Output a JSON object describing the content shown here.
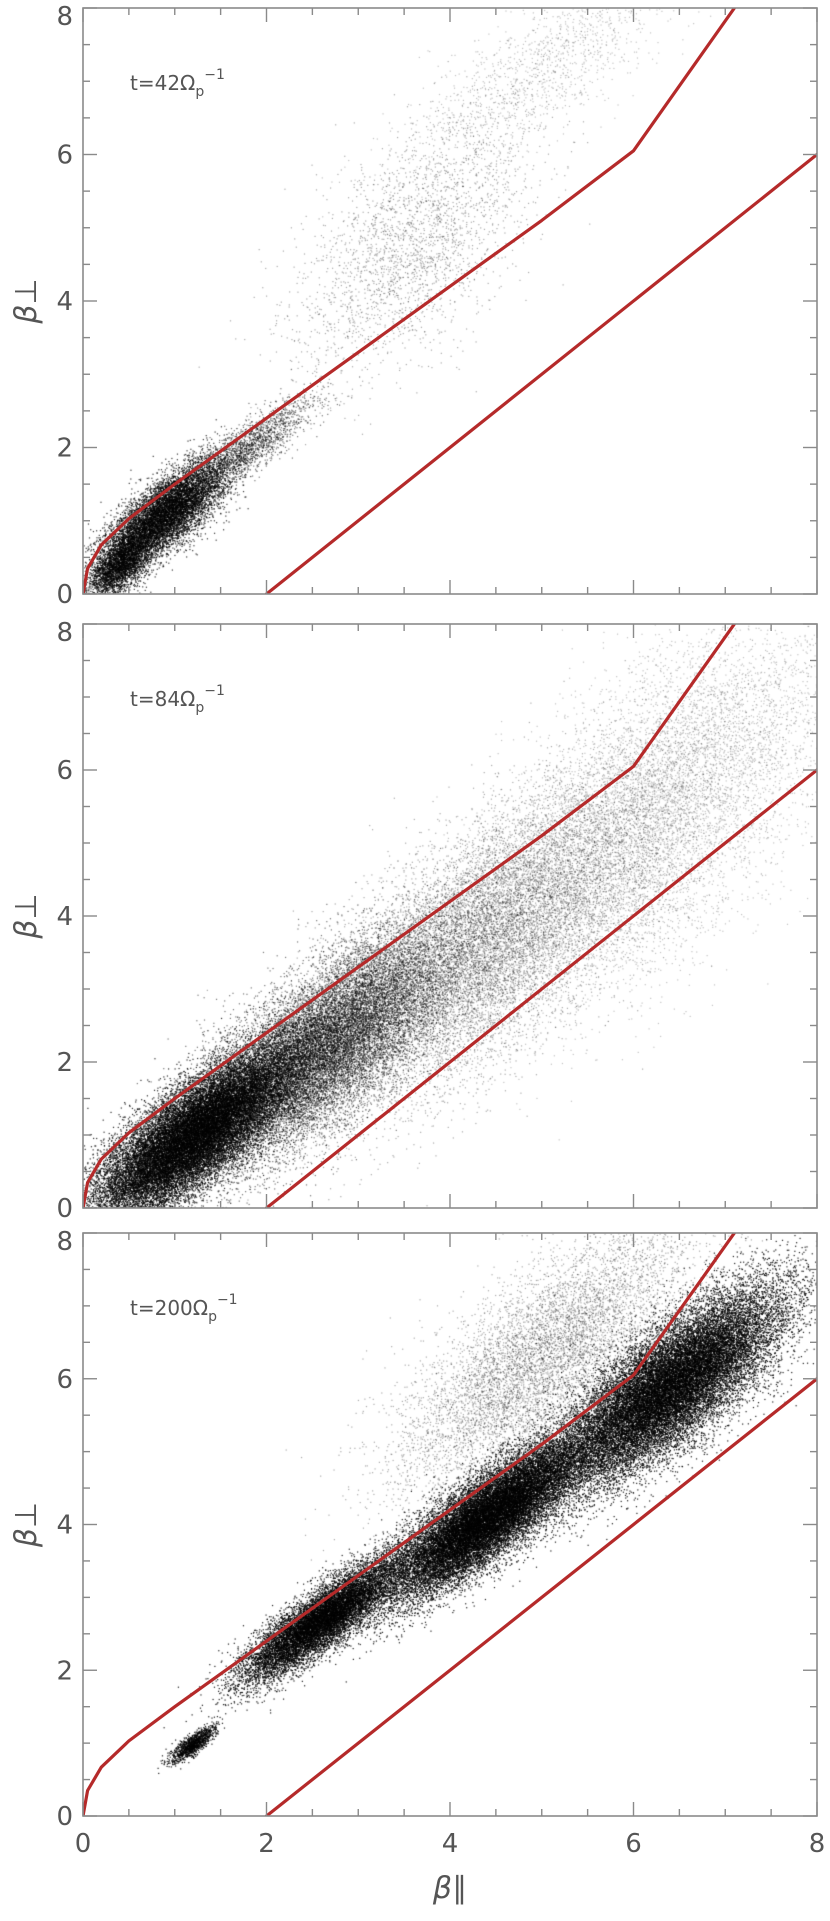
{
  "chart_data": [
    {
      "type": "scatter",
      "annotation": {
        "prefix": "t=42Ω",
        "sub": "p",
        "sup": "−1"
      },
      "xlabel": "",
      "ylabel": "β⊥",
      "xlim": [
        0,
        8
      ],
      "ylim": [
        0,
        8
      ],
      "xticks": [],
      "yticks": [
        "0",
        "2",
        "4",
        "6",
        "8"
      ],
      "grid": false,
      "series": [
        {
          "kind": "thresholds",
          "color": "#b52a2a",
          "curves": [
            {
              "points": [
                [
                  0,
                  0
                ],
                [
                  0.05,
                  0.35
                ],
                [
                  0.2,
                  0.67
                ],
                [
                  0.5,
                  1.03
                ],
                [
                  1,
                  1.5
                ],
                [
                  2,
                  2.4
                ],
                [
                  3,
                  3.3
                ],
                [
                  4,
                  4.2
                ],
                [
                  5,
                  5.1
                ],
                [
                  6,
                  6.05
                ],
                [
                  7.1,
                  8
                ]
              ]
            },
            {
              "points": [
                [
                  2,
                  0
                ],
                [
                  8,
                  6
                ]
              ]
            }
          ]
        },
        {
          "kind": "particles",
          "color": "#000000",
          "clusters": [
            {
              "center": [
                0.9,
                1.1
              ],
              "spread": [
                0.55,
                0.4
              ],
              "count": 9000,
              "opacity": 0.8
            },
            {
              "center": [
                0.4,
                0.4
              ],
              "spread": [
                0.3,
                0.3
              ],
              "count": 3000,
              "opacity": 0.8
            },
            {
              "center": [
                1.8,
                2.0
              ],
              "spread": [
                0.6,
                0.3
              ],
              "count": 1800,
              "opacity": 0.55
            },
            {
              "center": [
                3.6,
                4.8
              ],
              "spread": [
                1.1,
                1.2
              ],
              "count": 2500,
              "opacity": 0.35
            },
            {
              "center": [
                5.0,
                7.2
              ],
              "spread": [
                1.3,
                0.8
              ],
              "count": 1400,
              "opacity": 0.25
            }
          ]
        }
      ]
    },
    {
      "type": "scatter",
      "annotation": {
        "prefix": "t=84Ω",
        "sub": "p",
        "sup": "−1"
      },
      "xlabel": "",
      "ylabel": "β⊥",
      "xlim": [
        0,
        8
      ],
      "ylim": [
        0,
        8
      ],
      "xticks": [],
      "yticks": [
        "0",
        "2",
        "4",
        "6",
        "8"
      ],
      "grid": false,
      "series": [
        {
          "kind": "thresholds",
          "color": "#b52a2a",
          "curves": [
            {
              "points": [
                [
                  0,
                  0
                ],
                [
                  0.05,
                  0.35
                ],
                [
                  0.2,
                  0.67
                ],
                [
                  0.5,
                  1.03
                ],
                [
                  1,
                  1.5
                ],
                [
                  2,
                  2.4
                ],
                [
                  3,
                  3.3
                ],
                [
                  4,
                  4.2
                ],
                [
                  5,
                  5.1
                ],
                [
                  6,
                  6.05
                ],
                [
                  7.1,
                  8
                ]
              ]
            },
            {
              "points": [
                [
                  2,
                  0
                ],
                [
                  8,
                  6
                ]
              ]
            }
          ]
        },
        {
          "kind": "particles",
          "color": "#000000",
          "clusters": [
            {
              "center": [
                1.2,
                1.0
              ],
              "spread": [
                0.9,
                0.6
              ],
              "count": 26000,
              "opacity": 0.85
            },
            {
              "center": [
                2.6,
                2.2
              ],
              "spread": [
                1.1,
                0.9
              ],
              "count": 18000,
              "opacity": 0.55
            },
            {
              "center": [
                4.3,
                3.6
              ],
              "spread": [
                1.5,
                1.3
              ],
              "count": 13000,
              "opacity": 0.35
            },
            {
              "center": [
                6.2,
                5.4
              ],
              "spread": [
                1.6,
                1.6
              ],
              "count": 9000,
              "opacity": 0.25
            }
          ]
        }
      ]
    },
    {
      "type": "scatter",
      "annotation": {
        "prefix": "t=200Ω",
        "sub": "p",
        "sup": "−1"
      },
      "xlabel": "β∥",
      "ylabel": "β⊥",
      "xlim": [
        0,
        8
      ],
      "ylim": [
        0,
        8
      ],
      "xticks": [
        "0",
        "2",
        "4",
        "6",
        "8"
      ],
      "yticks": [
        "0",
        "2",
        "4",
        "6",
        "8"
      ],
      "grid": false,
      "series": [
        {
          "kind": "thresholds",
          "color": "#b52a2a",
          "curves": [
            {
              "points": [
                [
                  0,
                  0
                ],
                [
                  0.05,
                  0.35
                ],
                [
                  0.2,
                  0.67
                ],
                [
                  0.5,
                  1.03
                ],
                [
                  1,
                  1.5
                ],
                [
                  2,
                  2.4
                ],
                [
                  3,
                  3.3
                ],
                [
                  4,
                  4.2
                ],
                [
                  5,
                  5.1
                ],
                [
                  6,
                  6.05
                ],
                [
                  7.1,
                  8
                ]
              ]
            },
            {
              "points": [
                [
                  2,
                  0
                ],
                [
                  8,
                  6
                ]
              ]
            }
          ]
        },
        {
          "kind": "particles",
          "color": "#000000",
          "clusters": [
            {
              "center": [
                1.2,
                1.0
              ],
              "spread": [
                0.2,
                0.12
              ],
              "count": 1200,
              "opacity": 0.9
            },
            {
              "center": [
                2.6,
                2.7
              ],
              "spread": [
                0.7,
                0.35
              ],
              "count": 12000,
              "opacity": 0.9
            },
            {
              "center": [
                4.4,
                4.1
              ],
              "spread": [
                0.9,
                0.5
              ],
              "count": 22000,
              "opacity": 0.9
            },
            {
              "center": [
                6.4,
                5.9
              ],
              "spread": [
                1.0,
                0.7
              ],
              "count": 24000,
              "opacity": 0.9
            },
            {
              "center": [
                5.0,
                6.3
              ],
              "spread": [
                1.3,
                1.0
              ],
              "count": 7000,
              "opacity": 0.35
            }
          ]
        }
      ]
    }
  ]
}
